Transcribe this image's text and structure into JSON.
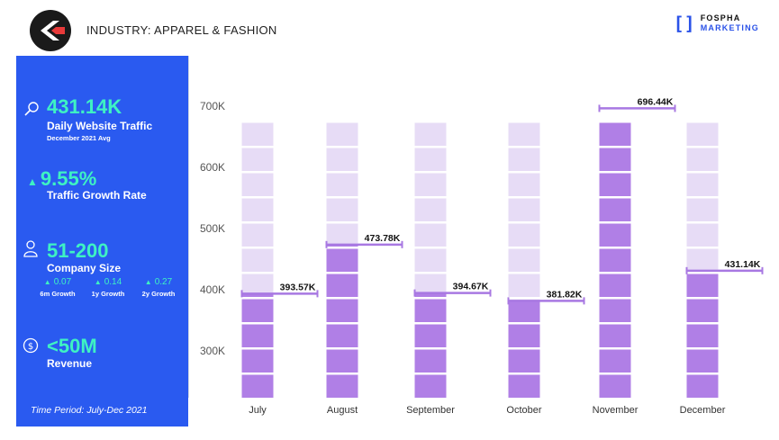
{
  "header": {
    "industry": "INDUSTRY: APPAREL & FASHION",
    "brand_top": "FOSPHA",
    "brand_bottom": "MARKETING"
  },
  "stats": {
    "traffic_value": "431.14K",
    "traffic_label": "Daily Website Traffic",
    "traffic_sub": "December 2021 Avg",
    "growth_value": "9.55%",
    "growth_label": "Traffic Growth Rate",
    "company_value": "51-200",
    "company_label": "Company Size",
    "growth_items": [
      {
        "value": "0.07",
        "label": "6m Growth"
      },
      {
        "value": "0.14",
        "label": "1y Growth"
      },
      {
        "value": "0.27",
        "label": "2y Growth"
      }
    ],
    "revenue_value": "<50M",
    "revenue_label": "Revenue",
    "time_period": "Time Period: July-Dec 2021"
  },
  "colors": {
    "panel": "#2a5af0",
    "accent": "#3ef2c3",
    "bar_filled": "#b07fe6",
    "bar_empty": "#e7dcf6",
    "marker": "#a878e2"
  },
  "chart_data": {
    "type": "bar",
    "categories": [
      "July",
      "August",
      "September",
      "October",
      "November",
      "December"
    ],
    "values": [
      393.57,
      473.78,
      394.67,
      381.82,
      696.44,
      431.14
    ],
    "data_labels": [
      "393.57K",
      "473.78K",
      "394.67K",
      "381.82K",
      "696.44K",
      "431.14K"
    ],
    "y_ticks": [
      {
        "value": 300,
        "label": "300K"
      },
      {
        "value": 400,
        "label": "400K"
      },
      {
        "value": 500,
        "label": "500K"
      },
      {
        "value": 600,
        "label": "600K"
      },
      {
        "value": 700,
        "label": "700K"
      }
    ],
    "ylabel": "",
    "xlabel": "",
    "grid": false
  }
}
